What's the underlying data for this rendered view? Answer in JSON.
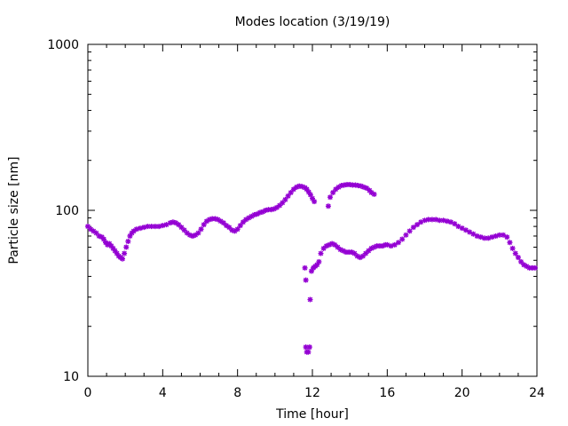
{
  "chart_data": {
    "type": "scatter",
    "title": "Modes location (3/19/19)",
    "xlabel": "Time [hour]",
    "ylabel": "Particle size [nm]",
    "xlim": [
      0,
      24
    ],
    "ylim": [
      10,
      1000
    ],
    "yscale": "log",
    "x_ticks": [
      0,
      4,
      8,
      12,
      16,
      20,
      24
    ],
    "y_ticks": [
      10,
      100,
      1000
    ],
    "x_tick_labels": [
      "0",
      "4",
      "8",
      "12",
      "16",
      "20",
      "24"
    ],
    "y_tick_labels": [
      "10",
      "100",
      "1000"
    ],
    "grid": false,
    "marker_color": "#9400d3",
    "series": [
      {
        "mode": "primary",
        "points": [
          [
            0.0,
            80
          ],
          [
            0.15,
            77
          ],
          [
            0.3,
            75
          ],
          [
            0.45,
            73
          ],
          [
            0.6,
            70
          ],
          [
            0.75,
            69
          ],
          [
            0.85,
            67
          ],
          [
            0.95,
            64
          ],
          [
            1.05,
            62
          ],
          [
            1.15,
            63
          ],
          [
            1.25,
            61
          ],
          [
            1.35,
            59
          ],
          [
            1.45,
            57
          ],
          [
            1.55,
            55
          ],
          [
            1.65,
            53
          ],
          [
            1.75,
            52
          ],
          [
            1.85,
            51
          ],
          [
            1.95,
            55
          ],
          [
            2.05,
            60
          ],
          [
            2.15,
            65
          ],
          [
            2.25,
            70
          ],
          [
            2.35,
            73
          ],
          [
            2.45,
            75
          ],
          [
            2.6,
            77
          ],
          [
            2.8,
            78
          ],
          [
            3.0,
            79
          ],
          [
            3.2,
            80
          ],
          [
            3.4,
            80
          ],
          [
            3.6,
            80
          ],
          [
            3.8,
            80
          ],
          [
            4.0,
            81
          ],
          [
            4.2,
            82
          ],
          [
            4.4,
            84
          ],
          [
            4.55,
            85
          ],
          [
            4.7,
            84
          ],
          [
            4.85,
            82
          ],
          [
            5.0,
            79
          ],
          [
            5.15,
            76
          ],
          [
            5.3,
            73
          ],
          [
            5.45,
            71
          ],
          [
            5.6,
            70
          ],
          [
            5.75,
            71
          ],
          [
            5.9,
            73
          ],
          [
            6.05,
            77
          ],
          [
            6.2,
            82
          ],
          [
            6.35,
            86
          ],
          [
            6.5,
            88
          ],
          [
            6.65,
            89
          ],
          [
            6.8,
            89
          ],
          [
            6.95,
            88
          ],
          [
            7.1,
            86
          ],
          [
            7.25,
            84
          ],
          [
            7.4,
            81
          ],
          [
            7.55,
            79
          ],
          [
            7.7,
            76
          ],
          [
            7.85,
            75
          ],
          [
            8.0,
            77
          ],
          [
            8.15,
            81
          ],
          [
            8.3,
            85
          ],
          [
            8.45,
            88
          ],
          [
            8.6,
            90
          ],
          [
            8.75,
            92
          ],
          [
            8.9,
            94
          ],
          [
            9.05,
            95
          ],
          [
            9.2,
            97
          ],
          [
            9.35,
            98
          ],
          [
            9.5,
            100
          ],
          [
            9.65,
            101
          ],
          [
            9.8,
            101
          ],
          [
            9.95,
            102
          ],
          [
            10.1,
            104
          ],
          [
            10.25,
            107
          ],
          [
            10.4,
            111
          ],
          [
            10.55,
            116
          ],
          [
            10.7,
            122
          ],
          [
            10.85,
            128
          ],
          [
            11.0,
            134
          ],
          [
            11.15,
            138
          ],
          [
            11.3,
            140
          ],
          [
            11.45,
            139
          ],
          [
            11.6,
            137
          ],
          [
            11.7,
            134
          ],
          [
            11.8,
            129
          ],
          [
            11.9,
            124
          ],
          [
            12.0,
            118
          ],
          [
            12.1,
            113
          ],
          [
            12.85,
            106
          ],
          [
            12.95,
            120
          ],
          [
            13.1,
            128
          ],
          [
            13.25,
            134
          ],
          [
            13.4,
            138
          ],
          [
            13.55,
            141
          ],
          [
            13.7,
            142
          ],
          [
            13.85,
            143
          ],
          [
            14.0,
            143
          ],
          [
            14.15,
            142
          ],
          [
            14.3,
            142
          ],
          [
            14.45,
            141
          ],
          [
            14.6,
            140
          ],
          [
            14.75,
            138
          ],
          [
            14.9,
            136
          ],
          [
            15.05,
            132
          ],
          [
            15.15,
            128
          ],
          [
            15.3,
            125
          ],
          [
            16.0,
            62
          ],
          [
            16.2,
            61
          ],
          [
            16.4,
            62
          ],
          [
            16.6,
            64
          ],
          [
            16.8,
            67
          ],
          [
            17.0,
            71
          ],
          [
            17.2,
            75
          ],
          [
            17.4,
            79
          ],
          [
            17.6,
            82
          ],
          [
            17.8,
            85
          ],
          [
            18.0,
            87
          ],
          [
            18.2,
            88
          ],
          [
            18.4,
            88
          ],
          [
            18.6,
            88
          ],
          [
            18.8,
            87
          ],
          [
            19.0,
            87
          ],
          [
            19.2,
            86
          ],
          [
            19.4,
            85
          ],
          [
            19.6,
            83
          ],
          [
            19.8,
            80
          ],
          [
            20.0,
            78
          ],
          [
            20.2,
            76
          ],
          [
            20.4,
            74
          ],
          [
            20.6,
            72
          ],
          [
            20.8,
            70
          ],
          [
            21.0,
            69
          ],
          [
            21.2,
            68
          ],
          [
            21.4,
            68
          ],
          [
            21.6,
            69
          ],
          [
            21.8,
            70
          ],
          [
            22.0,
            71
          ],
          [
            22.2,
            71
          ],
          [
            22.4,
            69
          ],
          [
            22.55,
            64
          ],
          [
            22.7,
            59
          ],
          [
            22.85,
            55
          ],
          [
            23.0,
            52
          ],
          [
            23.15,
            49
          ],
          [
            23.3,
            47
          ],
          [
            23.45,
            46
          ],
          [
            23.6,
            45
          ],
          [
            23.75,
            45
          ],
          [
            23.9,
            45
          ]
        ]
      },
      {
        "mode": "secondary",
        "points": [
          [
            11.6,
            45
          ],
          [
            11.65,
            38
          ],
          [
            11.65,
            15
          ],
          [
            11.7,
            14
          ],
          [
            11.78,
            14
          ],
          [
            11.85,
            15
          ],
          [
            11.88,
            29
          ],
          [
            11.95,
            43
          ],
          [
            12.05,
            45
          ],
          [
            12.15,
            46
          ],
          [
            12.25,
            47
          ],
          [
            12.35,
            49
          ],
          [
            12.45,
            55
          ],
          [
            12.6,
            59
          ],
          [
            12.75,
            61
          ],
          [
            12.9,
            62
          ],
          [
            13.05,
            63
          ],
          [
            13.2,
            62
          ],
          [
            13.35,
            60
          ],
          [
            13.5,
            58
          ],
          [
            13.65,
            57
          ],
          [
            13.8,
            56
          ],
          [
            13.95,
            56
          ],
          [
            14.1,
            56
          ],
          [
            14.25,
            55
          ],
          [
            14.4,
            53
          ],
          [
            14.55,
            52
          ],
          [
            14.7,
            53
          ],
          [
            14.85,
            55
          ],
          [
            15.0,
            57
          ],
          [
            15.15,
            59
          ],
          [
            15.3,
            60
          ],
          [
            15.45,
            61
          ],
          [
            15.6,
            61
          ],
          [
            15.75,
            61
          ],
          [
            15.9,
            62
          ]
        ]
      }
    ]
  }
}
